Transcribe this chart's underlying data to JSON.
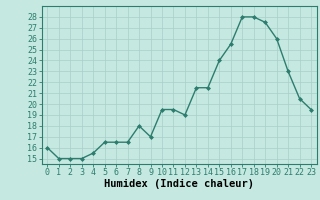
{
  "x": [
    0,
    1,
    2,
    3,
    4,
    5,
    6,
    7,
    8,
    9,
    10,
    11,
    12,
    13,
    14,
    15,
    16,
    17,
    18,
    19,
    20,
    21,
    22,
    23
  ],
  "y": [
    16,
    15,
    15,
    15,
    15.5,
    16.5,
    16.5,
    16.5,
    18,
    17,
    19.5,
    19.5,
    19,
    21.5,
    21.5,
    24,
    25.5,
    28,
    28,
    27.5,
    26,
    23,
    20.5,
    19.5
  ],
  "line_color": "#2d7d6e",
  "marker": "D",
  "marker_size": 2.0,
  "line_width": 1.0,
  "bg_color": "#c5e8e0",
  "grid_color": "#a8cfc8",
  "xlabel": "Humidex (Indice chaleur)",
  "xlim": [
    -0.5,
    23.5
  ],
  "ylim": [
    14.5,
    29.0
  ],
  "yticks": [
    15,
    16,
    17,
    18,
    19,
    20,
    21,
    22,
    23,
    24,
    25,
    26,
    27,
    28
  ],
  "xticks": [
    0,
    1,
    2,
    3,
    4,
    5,
    6,
    7,
    8,
    9,
    10,
    11,
    12,
    13,
    14,
    15,
    16,
    17,
    18,
    19,
    20,
    21,
    22,
    23
  ],
  "xlabel_fontsize": 7.5,
  "tick_fontsize": 6.0
}
